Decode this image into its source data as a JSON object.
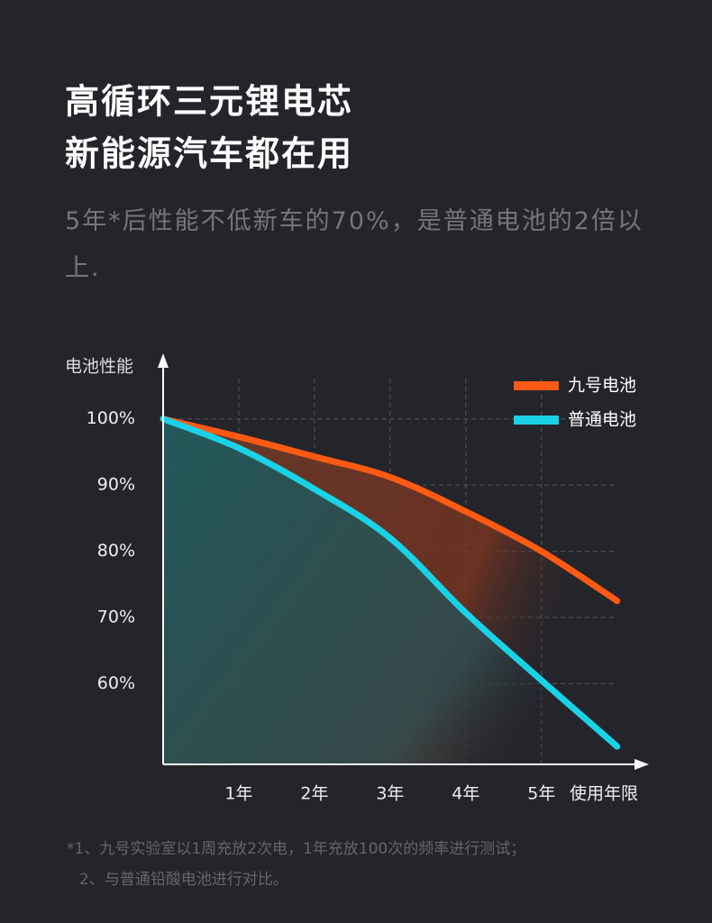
{
  "chart_data": {
    "type": "line",
    "title": [
      "高循环三元锂电芯",
      "新能源汽车都在用"
    ],
    "subtitle": "5年*后性能不低新车的70%，是普通电池的2倍以上.",
    "y_label": "电池性能",
    "x_label": "使用年限",
    "x": [
      0,
      1,
      2,
      3,
      4,
      5,
      6
    ],
    "series": [
      {
        "name": "九号电池",
        "color": "#ff5a14",
        "values": [
          100,
          97.3,
          94.3,
          91.2,
          86,
          80,
          72.5
        ]
      },
      {
        "name": "普通电池",
        "color": "#1ad2e6",
        "values": [
          100,
          95.6,
          89.4,
          82,
          70.7,
          60.5,
          50.5
        ]
      }
    ],
    "xlim": [
      0,
      6.42
    ],
    "ylim": [
      47.8,
      109.5
    ],
    "xticks": [
      {
        "value": 1,
        "label": "1年"
      },
      {
        "value": 2,
        "label": "2年"
      },
      {
        "value": 3,
        "label": "3年"
      },
      {
        "value": 4,
        "label": "4年"
      },
      {
        "value": 5,
        "label": "5年"
      }
    ],
    "yticks": [
      {
        "value": 100,
        "label": "100%"
      },
      {
        "value": 90,
        "label": "90%"
      },
      {
        "value": 80,
        "label": "80%"
      },
      {
        "value": 70,
        "label": "70%"
      },
      {
        "value": 60,
        "label": "60%"
      }
    ],
    "grid": true,
    "legend": "top-right",
    "notes": [
      "*1、九号实验室以1周充放2次电，1年充放100次的频率进行测试；",
      "2、与普通铅酸电池进行对比。"
    ]
  }
}
